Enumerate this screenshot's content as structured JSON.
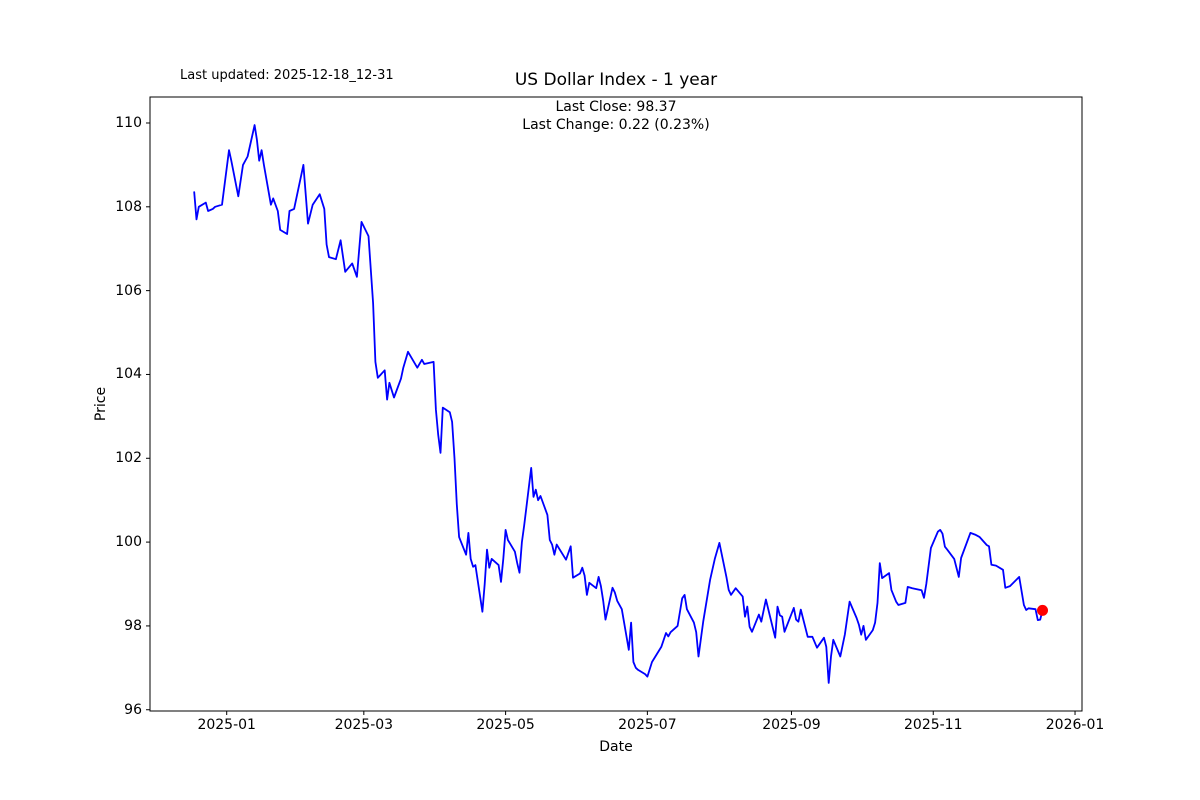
{
  "header": {
    "last_updated": "Last updated: 2025-12-18_12-31",
    "title": "US Dollar Index - 1 year"
  },
  "annotation": {
    "line1": "Last Close: 98.37",
    "line2": "Last Change: 0.22 (0.23%)"
  },
  "chart_data": {
    "type": "line",
    "title": "US Dollar Index - 1 year",
    "xlabel": "Date",
    "ylabel": "Price",
    "last_close": 98.37,
    "last_change": "0.22 (0.23%)",
    "line_color": "#0000ff",
    "last_point_color": "#ff0000",
    "axis_color": "#000000",
    "grid": false,
    "legend": "none",
    "x_range": [
      "2024-11-29",
      "2026-01-04"
    ],
    "ylim": [
      95.97,
      110.62
    ],
    "y_ticks": [
      96,
      98,
      100,
      102,
      104,
      106,
      108,
      110
    ],
    "x_ticks": [
      {
        "date": "2025-01-01",
        "label": "2025-01"
      },
      {
        "date": "2025-03-01",
        "label": "2025-03"
      },
      {
        "date": "2025-05-01",
        "label": "2025-05"
      },
      {
        "date": "2025-07-01",
        "label": "2025-07"
      },
      {
        "date": "2025-09-01",
        "label": "2025-09"
      },
      {
        "date": "2025-11-01",
        "label": "2025-11"
      },
      {
        "date": "2026-01-01",
        "label": "2026-01"
      }
    ],
    "series": [
      {
        "name": "US Dollar Index",
        "points": [
          [
            "2024-12-18",
            108.35
          ],
          [
            "2024-12-19",
            107.7
          ],
          [
            "2024-12-20",
            108.0
          ],
          [
            "2024-12-23",
            108.1
          ],
          [
            "2024-12-24",
            107.9
          ],
          [
            "2024-12-26",
            107.95
          ],
          [
            "2024-12-27",
            108.0
          ],
          [
            "2024-12-30",
            108.05
          ],
          [
            "2025-01-02",
            109.35
          ],
          [
            "2025-01-03",
            109.1
          ],
          [
            "2025-01-06",
            108.25
          ],
          [
            "2025-01-08",
            109.0
          ],
          [
            "2025-01-10",
            109.2
          ],
          [
            "2025-01-13",
            109.95
          ],
          [
            "2025-01-14",
            109.6
          ],
          [
            "2025-01-15",
            109.1
          ],
          [
            "2025-01-16",
            109.35
          ],
          [
            "2025-01-17",
            109.0
          ],
          [
            "2025-01-20",
            108.05
          ],
          [
            "2025-01-21",
            108.2
          ],
          [
            "2025-01-23",
            107.9
          ],
          [
            "2025-01-24",
            107.45
          ],
          [
            "2025-01-27",
            107.35
          ],
          [
            "2025-01-28",
            107.9
          ],
          [
            "2025-01-30",
            107.95
          ],
          [
            "2025-02-03",
            109.0
          ],
          [
            "2025-02-04",
            108.3
          ],
          [
            "2025-02-05",
            107.6
          ],
          [
            "2025-02-07",
            108.05
          ],
          [
            "2025-02-10",
            108.3
          ],
          [
            "2025-02-12",
            107.95
          ],
          [
            "2025-02-13",
            107.1
          ],
          [
            "2025-02-14",
            106.8
          ],
          [
            "2025-02-17",
            106.75
          ],
          [
            "2025-02-19",
            107.2
          ],
          [
            "2025-02-21",
            106.45
          ],
          [
            "2025-02-24",
            106.65
          ],
          [
            "2025-02-26",
            106.33
          ],
          [
            "2025-02-28",
            107.64
          ],
          [
            "2025-03-03",
            107.3
          ],
          [
            "2025-03-05",
            105.7
          ],
          [
            "2025-03-06",
            104.3
          ],
          [
            "2025-03-07",
            103.92
          ],
          [
            "2025-03-10",
            104.1
          ],
          [
            "2025-03-11",
            103.4
          ],
          [
            "2025-03-12",
            103.8
          ],
          [
            "2025-03-14",
            103.45
          ],
          [
            "2025-03-17",
            103.9
          ],
          [
            "2025-03-18",
            104.16
          ],
          [
            "2025-03-20",
            104.54
          ],
          [
            "2025-03-24",
            104.16
          ],
          [
            "2025-03-26",
            104.35
          ],
          [
            "2025-03-27",
            104.25
          ],
          [
            "2025-03-31",
            104.3
          ],
          [
            "2025-04-01",
            103.16
          ],
          [
            "2025-04-02",
            102.56
          ],
          [
            "2025-04-03",
            102.13
          ],
          [
            "2025-04-04",
            103.21
          ],
          [
            "2025-04-07",
            103.1
          ],
          [
            "2025-04-08",
            102.87
          ],
          [
            "2025-04-09",
            102.0
          ],
          [
            "2025-04-10",
            100.9
          ],
          [
            "2025-04-11",
            100.12
          ],
          [
            "2025-04-14",
            99.7
          ],
          [
            "2025-04-15",
            100.22
          ],
          [
            "2025-04-16",
            99.6
          ],
          [
            "2025-04-17",
            99.41
          ],
          [
            "2025-04-18",
            99.45
          ],
          [
            "2025-04-21",
            98.34
          ],
          [
            "2025-04-22",
            99.0
          ],
          [
            "2025-04-23",
            99.82
          ],
          [
            "2025-04-24",
            99.39
          ],
          [
            "2025-04-25",
            99.6
          ],
          [
            "2025-04-28",
            99.45
          ],
          [
            "2025-04-29",
            99.05
          ],
          [
            "2025-04-30",
            99.6
          ],
          [
            "2025-05-01",
            100.29
          ],
          [
            "2025-05-02",
            100.05
          ],
          [
            "2025-05-05",
            99.77
          ],
          [
            "2025-05-06",
            99.5
          ],
          [
            "2025-05-07",
            99.27
          ],
          [
            "2025-05-08",
            100.0
          ],
          [
            "2025-05-09",
            100.4
          ],
          [
            "2025-05-12",
            101.77
          ],
          [
            "2025-05-13",
            101.08
          ],
          [
            "2025-05-14",
            101.25
          ],
          [
            "2025-05-15",
            101.0
          ],
          [
            "2025-05-16",
            101.1
          ],
          [
            "2025-05-19",
            100.65
          ],
          [
            "2025-05-20",
            100.05
          ],
          [
            "2025-05-21",
            99.94
          ],
          [
            "2025-05-22",
            99.7
          ],
          [
            "2025-05-23",
            99.94
          ],
          [
            "2025-05-27",
            99.58
          ],
          [
            "2025-05-29",
            99.9
          ],
          [
            "2025-05-30",
            99.15
          ],
          [
            "2025-06-02",
            99.25
          ],
          [
            "2025-06-03",
            99.39
          ],
          [
            "2025-06-04",
            99.2
          ],
          [
            "2025-06-05",
            98.74
          ],
          [
            "2025-06-06",
            99.03
          ],
          [
            "2025-06-09",
            98.9
          ],
          [
            "2025-06-10",
            99.17
          ],
          [
            "2025-06-11",
            98.95
          ],
          [
            "2025-06-12",
            98.6
          ],
          [
            "2025-06-13",
            98.15
          ],
          [
            "2025-06-16",
            98.91
          ],
          [
            "2025-06-17",
            98.8
          ],
          [
            "2025-06-18",
            98.6
          ],
          [
            "2025-06-20",
            98.4
          ],
          [
            "2025-06-23",
            97.43
          ],
          [
            "2025-06-24",
            98.08
          ],
          [
            "2025-06-25",
            97.14
          ],
          [
            "2025-06-26",
            97.0
          ],
          [
            "2025-06-27",
            96.95
          ],
          [
            "2025-06-30",
            96.85
          ],
          [
            "2025-07-01",
            96.79
          ],
          [
            "2025-07-03",
            97.14
          ],
          [
            "2025-07-07",
            97.5
          ],
          [
            "2025-07-09",
            97.83
          ],
          [
            "2025-07-10",
            97.75
          ],
          [
            "2025-07-11",
            97.85
          ],
          [
            "2025-07-14",
            98.0
          ],
          [
            "2025-07-16",
            98.66
          ],
          [
            "2025-07-17",
            98.74
          ],
          [
            "2025-07-18",
            98.4
          ],
          [
            "2025-07-21",
            98.08
          ],
          [
            "2025-07-22",
            97.85
          ],
          [
            "2025-07-23",
            97.27
          ],
          [
            "2025-07-25",
            98.1
          ],
          [
            "2025-07-28",
            99.1
          ],
          [
            "2025-07-30",
            99.6
          ],
          [
            "2025-08-01",
            99.98
          ],
          [
            "2025-08-04",
            99.17
          ],
          [
            "2025-08-05",
            98.86
          ],
          [
            "2025-08-06",
            98.74
          ],
          [
            "2025-08-08",
            98.9
          ],
          [
            "2025-08-11",
            98.7
          ],
          [
            "2025-08-12",
            98.22
          ],
          [
            "2025-08-13",
            98.46
          ],
          [
            "2025-08-14",
            97.98
          ],
          [
            "2025-08-15",
            97.86
          ],
          [
            "2025-08-18",
            98.27
          ],
          [
            "2025-08-19",
            98.1
          ],
          [
            "2025-08-21",
            98.63
          ],
          [
            "2025-08-25",
            97.72
          ],
          [
            "2025-08-26",
            98.46
          ],
          [
            "2025-08-27",
            98.25
          ],
          [
            "2025-08-28",
            98.22
          ],
          [
            "2025-08-29",
            97.86
          ],
          [
            "2025-09-02",
            98.43
          ],
          [
            "2025-09-03",
            98.15
          ],
          [
            "2025-09-04",
            98.1
          ],
          [
            "2025-09-05",
            98.39
          ],
          [
            "2025-09-08",
            97.74
          ],
          [
            "2025-09-10",
            97.74
          ],
          [
            "2025-09-12",
            97.48
          ],
          [
            "2025-09-15",
            97.72
          ],
          [
            "2025-09-16",
            97.5
          ],
          [
            "2025-09-17",
            96.64
          ],
          [
            "2025-09-18",
            97.27
          ],
          [
            "2025-09-19",
            97.67
          ],
          [
            "2025-09-22",
            97.27
          ],
          [
            "2025-09-24",
            97.8
          ],
          [
            "2025-09-25",
            98.2
          ],
          [
            "2025-09-26",
            98.58
          ],
          [
            "2025-09-29",
            98.19
          ],
          [
            "2025-09-30",
            98.03
          ],
          [
            "2025-10-01",
            97.79
          ],
          [
            "2025-10-02",
            98.0
          ],
          [
            "2025-10-03",
            97.67
          ],
          [
            "2025-10-06",
            97.9
          ],
          [
            "2025-10-07",
            98.08
          ],
          [
            "2025-10-08",
            98.55
          ],
          [
            "2025-10-09",
            99.5
          ],
          [
            "2025-10-10",
            99.14
          ],
          [
            "2025-10-13",
            99.26
          ],
          [
            "2025-10-14",
            98.86
          ],
          [
            "2025-10-16",
            98.58
          ],
          [
            "2025-10-17",
            98.5
          ],
          [
            "2025-10-20",
            98.55
          ],
          [
            "2025-10-21",
            98.93
          ],
          [
            "2025-10-23",
            98.9
          ],
          [
            "2025-10-27",
            98.85
          ],
          [
            "2025-10-28",
            98.67
          ],
          [
            "2025-10-29",
            99.0
          ],
          [
            "2025-10-31",
            99.86
          ],
          [
            "2025-11-03",
            100.25
          ],
          [
            "2025-11-04",
            100.29
          ],
          [
            "2025-11-05",
            100.2
          ],
          [
            "2025-11-06",
            99.89
          ],
          [
            "2025-11-07",
            99.82
          ],
          [
            "2025-11-10",
            99.6
          ],
          [
            "2025-11-12",
            99.17
          ],
          [
            "2025-11-13",
            99.62
          ],
          [
            "2025-11-17",
            100.22
          ],
          [
            "2025-11-19",
            100.18
          ],
          [
            "2025-11-21",
            100.12
          ],
          [
            "2025-11-24",
            99.93
          ],
          [
            "2025-11-25",
            99.9
          ],
          [
            "2025-11-26",
            99.46
          ],
          [
            "2025-11-28",
            99.44
          ],
          [
            "2025-12-01",
            99.34
          ],
          [
            "2025-12-02",
            98.91
          ],
          [
            "2025-12-04",
            98.95
          ],
          [
            "2025-12-08",
            99.17
          ],
          [
            "2025-12-10",
            98.5
          ],
          [
            "2025-12-11",
            98.38
          ],
          [
            "2025-12-12",
            98.42
          ],
          [
            "2025-12-15",
            98.4
          ],
          [
            "2025-12-16",
            98.14
          ],
          [
            "2025-12-17",
            98.15
          ],
          [
            "2025-12-18",
            98.37
          ]
        ]
      }
    ]
  }
}
